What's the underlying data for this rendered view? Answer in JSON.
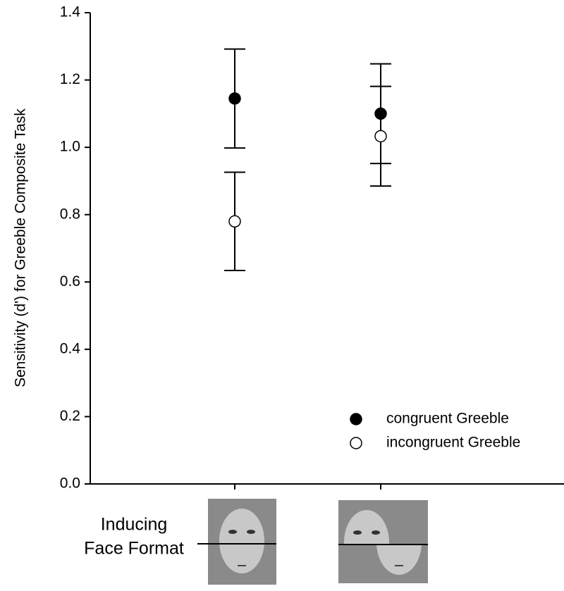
{
  "chart_data": {
    "type": "scatter",
    "ylabel": "Sensitivity (d') for Greeble Composite Task",
    "annotations": [
      "Inducing",
      "Face Format"
    ],
    "categories": [
      null,
      null
    ],
    "series": [
      {
        "name": "congruent Greeble",
        "color": "#000000",
        "values": [
          1.145,
          1.1
        ],
        "errors": [
          0.147,
          0.148
        ]
      },
      {
        "name": "incongruent Greeble",
        "color": "#ffffff",
        "values": [
          0.78,
          1.033
        ],
        "errors": [
          0.146,
          0.148
        ]
      }
    ],
    "ylim": [
      0,
      1.4
    ],
    "yticks": [
      {
        "value": 0,
        "label": "0.0"
      },
      0.2,
      0.4,
      0.6,
      0.8,
      {
        "value": 1,
        "label": "1.0"
      },
      1.2,
      1.4
    ],
    "legend": "lower right"
  }
}
